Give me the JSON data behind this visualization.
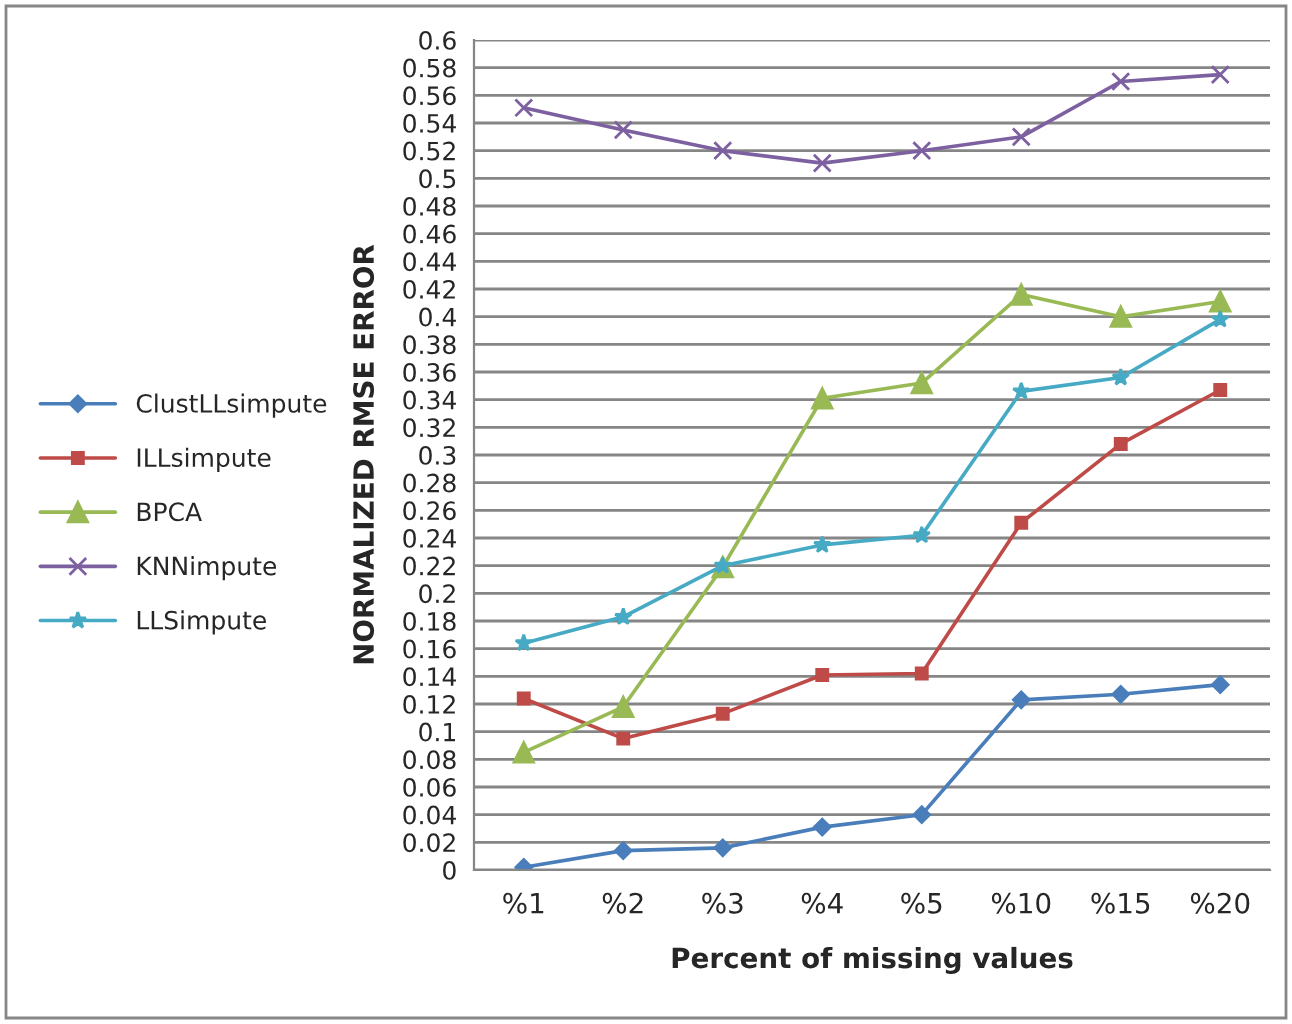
{
  "chart_data": {
    "type": "line",
    "xlabel": "Percent of missing values",
    "ylabel": "NORMALIZED RMSE ERROR",
    "categories": [
      "%1",
      "%2",
      "%3",
      "%4",
      "%5",
      "%10",
      "%15",
      "%20"
    ],
    "series": [
      {
        "name": "ClustLLsimpute",
        "color": "#4a7ebb",
        "marker": "diamond",
        "values": [
          0.002,
          0.014,
          0.016,
          0.031,
          0.04,
          0.123,
          0.127,
          0.134
        ]
      },
      {
        "name": "ILLsimpute",
        "color": "#be4b48",
        "marker": "square",
        "values": [
          0.124,
          0.095,
          0.113,
          0.141,
          0.142,
          0.251,
          0.308,
          0.347
        ]
      },
      {
        "name": "BPCA",
        "color": "#98b954",
        "marker": "triangle",
        "values": [
          0.085,
          0.118,
          0.219,
          0.341,
          0.352,
          0.416,
          0.4,
          0.411
        ]
      },
      {
        "name": "KNNimpute",
        "color": "#7d60a0",
        "marker": "cross",
        "values": [
          0.551,
          0.535,
          0.52,
          0.511,
          0.52,
          0.53,
          0.57,
          0.575
        ]
      },
      {
        "name": "LLSimpute",
        "color": "#46aac5",
        "marker": "star",
        "values": [
          0.164,
          0.183,
          0.22,
          0.235,
          0.242,
          0.346,
          0.356,
          0.398
        ]
      }
    ],
    "ylim": [
      0,
      0.6
    ],
    "yticks": [
      0,
      0.02,
      0.04,
      0.06,
      0.08,
      0.1,
      0.12,
      0.14,
      0.16,
      0.18,
      0.2,
      0.22,
      0.24,
      0.26,
      0.28,
      0.3,
      0.32,
      0.34,
      0.36,
      0.38,
      0.4,
      0.42,
      0.44,
      0.46,
      0.48,
      0.5,
      0.52,
      0.54,
      0.56,
      0.58,
      0.6
    ],
    "grid": "y",
    "legend": "left",
    "line_style": "solid"
  }
}
